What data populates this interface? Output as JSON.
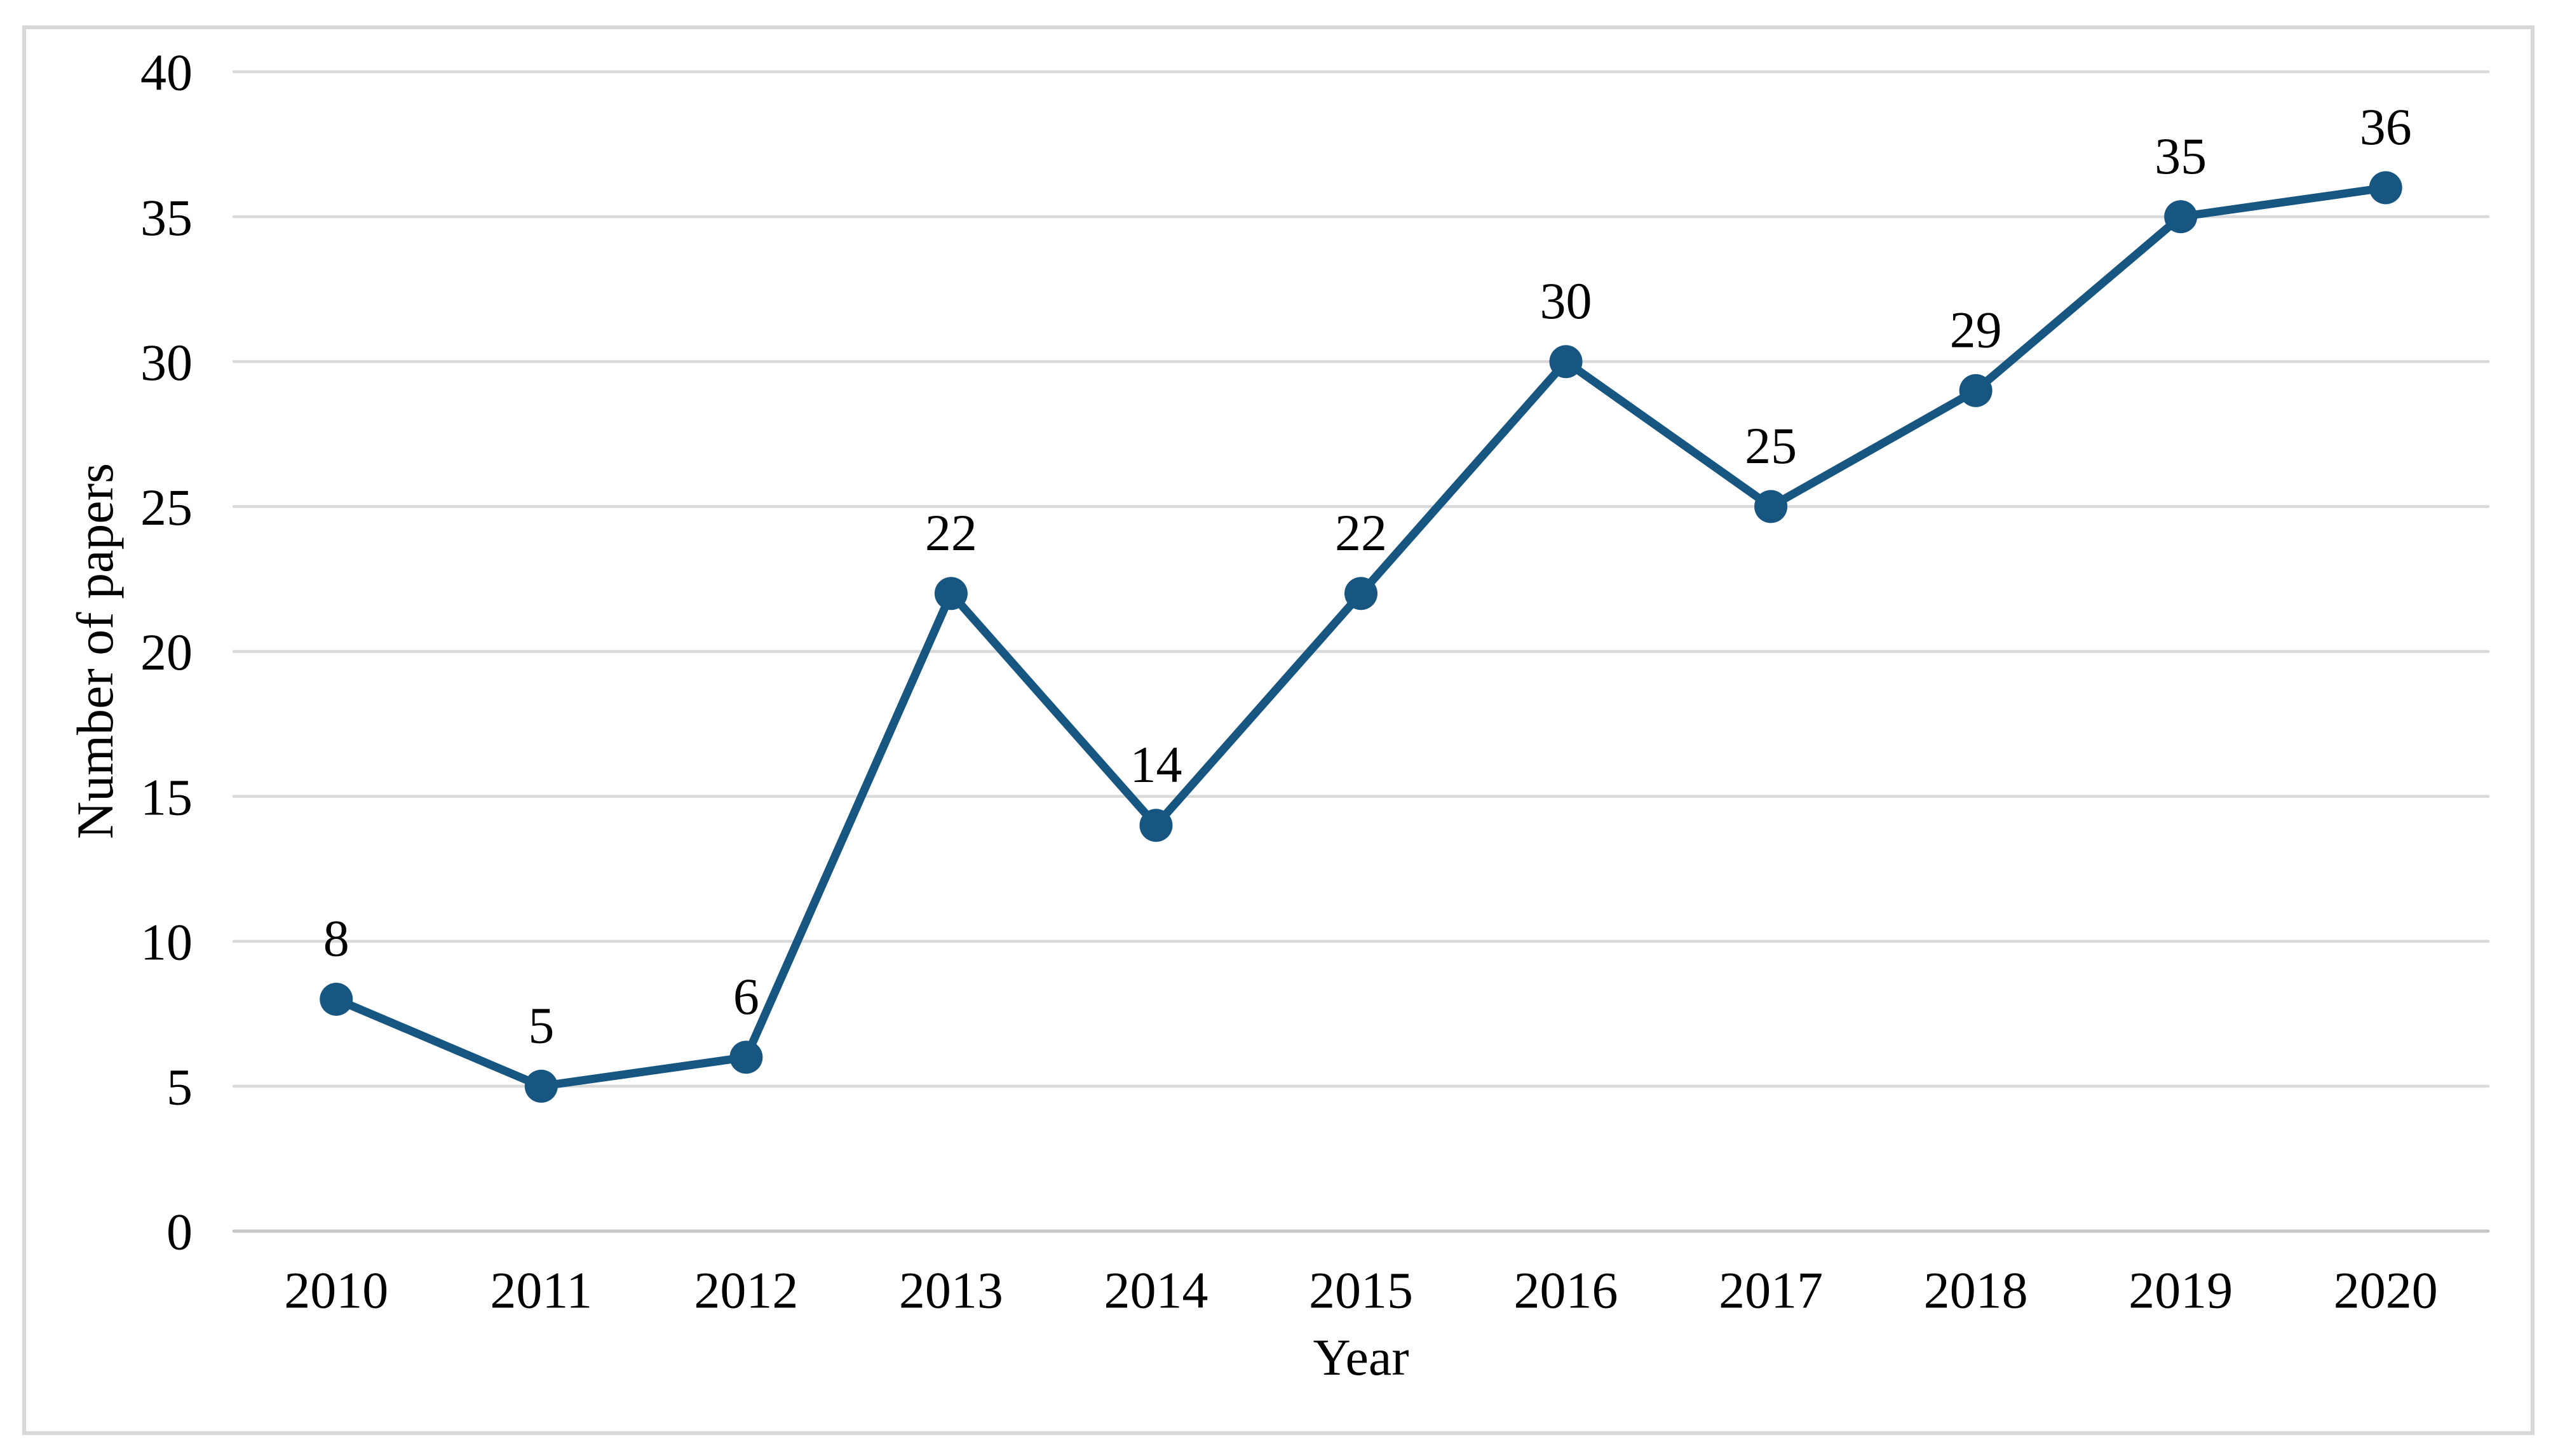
{
  "chart_data": {
    "type": "line",
    "x": [
      "2010",
      "2011",
      "2012",
      "2013",
      "2014",
      "2015",
      "2016",
      "2017",
      "2018",
      "2019",
      "2020"
    ],
    "values": [
      8,
      5,
      6,
      22,
      14,
      22,
      30,
      25,
      29,
      35,
      36
    ],
    "data_labels": [
      "8",
      "5",
      "6",
      "22",
      "14",
      "22",
      "30",
      "25",
      "29",
      "35",
      "36"
    ],
    "title": "",
    "xlabel": "Year",
    "ylabel": "Number of papers",
    "ylim": [
      0,
      40
    ],
    "yticks": [
      0,
      5,
      10,
      15,
      20,
      25,
      30,
      35,
      40
    ],
    "grid": true,
    "legend": false,
    "colors": {
      "line": "#175680",
      "marker": "#175680",
      "gridline": "#d9d9d9",
      "axis_line": "#c6c6c6",
      "frame_border": "#d8d8d8",
      "text": "#000000",
      "background": "#ffffff"
    }
  }
}
